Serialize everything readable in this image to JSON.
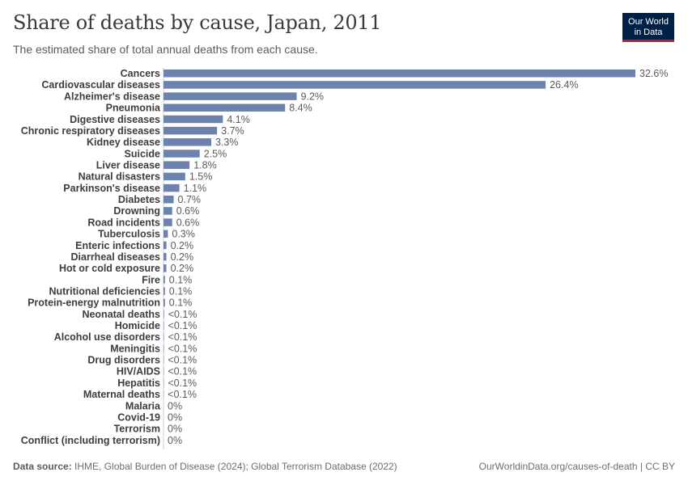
{
  "header": {
    "title": "Share of deaths by cause, Japan, 2011",
    "subtitle": "The estimated share of total annual deaths from each cause."
  },
  "logo": {
    "line1": "Our World",
    "line2": "in Data"
  },
  "footer": {
    "source_label": "Data source:",
    "source_text": "IHME, Global Burden of Disease (2024); Global Terrorism Database (2022)",
    "url_text": "OurWorldinData.org/causes-of-death | CC BY"
  },
  "colors": {
    "bar": "#6d83ad",
    "label": "#3d3d3d",
    "value": "#5b5b5b",
    "axis": "#cccccc"
  },
  "chart_data": {
    "type": "bar",
    "orientation": "horizontal",
    "unit": "%",
    "xlim": [
      0,
      32.6
    ],
    "categories": [
      "Cancers",
      "Cardiovascular diseases",
      "Alzheimer's disease",
      "Pneumonia",
      "Digestive diseases",
      "Chronic respiratory diseases",
      "Kidney disease",
      "Suicide",
      "Liver disease",
      "Natural disasters",
      "Parkinson's disease",
      "Diabetes",
      "Drowning",
      "Road incidents",
      "Tuberculosis",
      "Enteric infections",
      "Diarrheal diseases",
      "Hot or cold exposure",
      "Fire",
      "Nutritional deficiencies",
      "Protein-energy malnutrition",
      "Neonatal deaths",
      "Homicide",
      "Alcohol use disorders",
      "Meningitis",
      "Drug disorders",
      "HIV/AIDS",
      "Hepatitis",
      "Maternal deaths",
      "Malaria",
      "Covid-19",
      "Terrorism",
      "Conflict (including terrorism)"
    ],
    "values": [
      32.6,
      26.4,
      9.2,
      8.4,
      4.1,
      3.7,
      3.3,
      2.5,
      1.8,
      1.5,
      1.1,
      0.7,
      0.6,
      0.6,
      0.3,
      0.2,
      0.2,
      0.2,
      0.1,
      0.1,
      0.1,
      0.04,
      0.03,
      0.03,
      0.03,
      0.02,
      0.02,
      0.02,
      0.01,
      0,
      0,
      0,
      0
    ],
    "value_labels": [
      "32.6%",
      "26.4%",
      "9.2%",
      "8.4%",
      "4.1%",
      "3.7%",
      "3.3%",
      "2.5%",
      "1.8%",
      "1.5%",
      "1.1%",
      "0.7%",
      "0.6%",
      "0.6%",
      "0.3%",
      "0.2%",
      "0.2%",
      "0.2%",
      "0.1%",
      "0.1%",
      "0.1%",
      "<0.1%",
      "<0.1%",
      "<0.1%",
      "<0.1%",
      "<0.1%",
      "<0.1%",
      "<0.1%",
      "<0.1%",
      "0%",
      "0%",
      "0%",
      "0%"
    ]
  }
}
